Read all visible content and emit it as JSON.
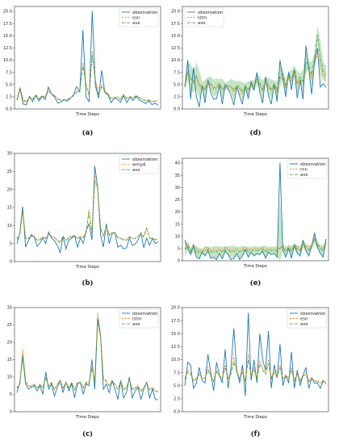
{
  "chart_data": [
    {
      "panel": "a",
      "type": "line",
      "xlabel": "Time Steps",
      "ylim": [
        0,
        21
      ],
      "yticks": [
        "0.0",
        "2.5",
        "5.0",
        "7.5",
        "10.0",
        "12.5",
        "15.0",
        "17.5",
        "20.0"
      ],
      "legend_position": "top-right",
      "band": false,
      "series": [
        {
          "name": "observation",
          "style": "solid",
          "color": "#1f77b4",
          "values": [
            1.8,
            4.2,
            1.0,
            0.9,
            2.6,
            1.5,
            2.8,
            1.6,
            2.6,
            1.9,
            4.5,
            3.1,
            2.4,
            1.2,
            1.4,
            1.9,
            1.6,
            2.2,
            2.9,
            4.6,
            3.5,
            16.2,
            2.5,
            1.5,
            20.1,
            4.8,
            2.2,
            7.9,
            3.4,
            2.9,
            1.3,
            2.2,
            2.0,
            1.4,
            2.7,
            1.3,
            2.4,
            1.7,
            2.6,
            1.8,
            1.5,
            1.1,
            1.7,
            0.9,
            1.2,
            0.8
          ]
        },
        {
          "name": "esn",
          "style": "dashed",
          "color": "#ff7f0e",
          "values": [
            2.0,
            4.5,
            1.8,
            1.6,
            2.4,
            2.1,
            2.9,
            2.2,
            2.7,
            2.6,
            3.8,
            3.2,
            2.8,
            2.2,
            1.8,
            1.9,
            2.0,
            2.3,
            2.8,
            3.6,
            3.8,
            9.5,
            5.2,
            3.0,
            11.8,
            6.0,
            3.0,
            4.9,
            3.8,
            3.1,
            2.2,
            2.3,
            2.6,
            2.1,
            3.0,
            2.2,
            2.6,
            2.3,
            2.8,
            2.4,
            2.0,
            1.8,
            1.9,
            1.5,
            1.7,
            1.6
          ]
        },
        {
          "name": "ave",
          "style": "dashdot",
          "color": "#2ca02c",
          "values": [
            1.9,
            4.3,
            1.6,
            1.5,
            2.3,
            2.0,
            2.8,
            2.0,
            2.6,
            2.4,
            3.6,
            3.1,
            2.7,
            2.0,
            1.7,
            1.8,
            1.9,
            2.2,
            2.7,
            3.4,
            3.6,
            8.8,
            4.8,
            2.8,
            10.9,
            5.6,
            2.8,
            4.6,
            3.6,
            3.0,
            2.1,
            2.2,
            2.5,
            2.0,
            2.9,
            2.1,
            2.5,
            2.2,
            2.7,
            2.3,
            1.9,
            1.7,
            1.8,
            1.4,
            1.6,
            1.5
          ]
        }
      ]
    },
    {
      "panel": "d",
      "type": "line",
      "xlabel": "Time Steps",
      "ylim": [
        0,
        21
      ],
      "yticks": [
        "0.0",
        "2.5",
        "5.0",
        "7.5",
        "10.0",
        "12.5",
        "15.0",
        "17.5",
        "20.0"
      ],
      "legend_position": "top-left",
      "band": true,
      "series": [
        {
          "name": "observation",
          "style": "solid",
          "color": "#1f77b4",
          "values": [
            4.5,
            10.0,
            2.0,
            8.5,
            2.5,
            0.4,
            4.8,
            1.2,
            6.0,
            3.3,
            2.0,
            2.1,
            4.8,
            1.0,
            5.0,
            4.1,
            2.8,
            0.8,
            4.5,
            2.6,
            1.0,
            4.8,
            2.1,
            5.6,
            3.8,
            7.5,
            3.4,
            1.2,
            6.5,
            2.8,
            1.0,
            5.2,
            1.5,
            10.0,
            6.2,
            2.5,
            7.5,
            3.9,
            8.0,
            2.2,
            6.0,
            2.0,
            13.0,
            8.0,
            3.0,
            9.5,
            12.5,
            4.5,
            5.2,
            4.4
          ]
        },
        {
          "name": "lstm",
          "style": "dashed",
          "color": "#ff7f0e",
          "values": [
            4.8,
            7.5,
            6.0,
            5.2,
            6.5,
            4.6,
            4.5,
            3.8,
            5.5,
            4.9,
            4.0,
            4.2,
            5.0,
            3.8,
            4.4,
            4.6,
            4.5,
            3.5,
            4.7,
            4.1,
            3.2,
            4.2,
            3.8,
            4.8,
            4.6,
            5.8,
            5.0,
            3.6,
            5.6,
            4.5,
            3.7,
            4.8,
            3.6,
            6.2,
            6.8,
            4.2,
            6.5,
            5.8,
            7.5,
            5.0,
            6.0,
            5.2,
            8.5,
            8.0,
            6.2,
            9.0,
            11.5,
            9.0,
            7.0,
            6.5
          ]
        },
        {
          "name": "ave",
          "style": "dashdot",
          "color": "#2ca02c",
          "values": [
            4.7,
            7.6,
            6.5,
            5.5,
            6.8,
            5.0,
            4.8,
            4.0,
            5.8,
            5.2,
            4.3,
            4.5,
            5.3,
            4.1,
            4.6,
            4.8,
            4.7,
            3.8,
            4.9,
            4.4,
            3.6,
            4.5,
            4.1,
            5.1,
            4.9,
            6.1,
            5.3,
            3.9,
            5.9,
            4.8,
            4.0,
            5.1,
            3.9,
            6.6,
            7.2,
            4.6,
            6.9,
            6.2,
            8.2,
            5.5,
            6.5,
            5.7,
            9.6,
            9.0,
            7.0,
            10.5,
            15.2,
            10.5,
            7.8,
            7.0
          ]
        }
      ]
    },
    {
      "panel": "b",
      "type": "line",
      "xlabel": "Time Steps",
      "ylim": [
        0,
        30
      ],
      "yticks": [
        "0",
        "5",
        "10",
        "15",
        "20",
        "25",
        "30"
      ],
      "legend_position": "top-right",
      "band": false,
      "series": [
        {
          "name": "observation",
          "style": "solid",
          "color": "#1f77b4",
          "values": [
            5.0,
            8.0,
            15.2,
            4.0,
            5.8,
            7.5,
            6.8,
            4.2,
            5.2,
            6.5,
            5.0,
            8.2,
            6.5,
            5.8,
            4.5,
            2.5,
            7.0,
            3.5,
            6.0,
            6.5,
            7.2,
            4.0,
            6.6,
            5.0,
            8.5,
            10.5,
            6.0,
            26.5,
            20.5,
            7.5,
            4.0,
            10.5,
            5.0,
            7.8,
            8.0,
            4.0,
            4.5,
            3.5,
            3.8,
            6.5,
            4.5,
            4.8,
            6.0,
            8.0,
            3.8,
            6.5,
            4.5,
            6.5,
            5.0,
            5.5
          ]
        },
        {
          "name": "wmp4",
          "style": "dashed",
          "color": "#ff7f0e",
          "values": [
            6.5,
            7.5,
            14.0,
            6.5,
            6.5,
            7.0,
            7.0,
            6.0,
            6.2,
            7.0,
            6.5,
            7.5,
            7.0,
            6.8,
            6.0,
            5.5,
            7.0,
            6.0,
            6.8,
            7.0,
            7.2,
            6.5,
            7.0,
            6.8,
            8.0,
            14.5,
            8.0,
            24.0,
            20.5,
            9.5,
            7.2,
            9.5,
            7.5,
            8.0,
            8.0,
            6.8,
            6.5,
            6.2,
            6.0,
            7.0,
            6.5,
            6.5,
            7.0,
            7.5,
            7.0,
            9.5,
            6.5,
            6.5,
            6.0,
            6.5
          ]
        },
        {
          "name": "ave",
          "style": "dashdot",
          "color": "#2ca02c",
          "values": [
            6.2,
            7.8,
            14.5,
            6.2,
            6.4,
            7.2,
            7.0,
            5.8,
            6.0,
            6.8,
            6.3,
            7.8,
            7.0,
            6.6,
            5.8,
            5.2,
            7.0,
            5.8,
            6.6,
            6.9,
            7.2,
            6.2,
            6.9,
            6.6,
            8.1,
            13.8,
            7.8,
            22.5,
            20.0,
            9.2,
            7.0,
            9.8,
            7.3,
            8.0,
            8.0,
            6.6,
            6.4,
            6.0,
            5.9,
            6.9,
            6.4,
            6.4,
            7.0,
            7.6,
            6.8,
            9.2,
            6.4,
            6.5,
            6.0,
            6.4
          ]
        }
      ]
    },
    {
      "panel": "e",
      "type": "line",
      "xlabel": "Time Steps",
      "ylim": [
        0,
        42
      ],
      "yticks": [
        "0",
        "5",
        "10",
        "15",
        "20",
        "25",
        "30",
        "35",
        "40"
      ],
      "legend_position": "top-right",
      "band": true,
      "series": [
        {
          "name": "observation",
          "style": "solid",
          "color": "#1f77b4",
          "values": [
            8.5,
            5.0,
            2.5,
            6.5,
            1.5,
            0.8,
            3.5,
            2.0,
            4.0,
            1.0,
            1.5,
            0.5,
            3.0,
            0.8,
            4.0,
            2.5,
            0.5,
            1.0,
            3.0,
            0.5,
            2.0,
            4.5,
            1.5,
            3.5,
            2.0,
            3.0,
            2.5,
            4.0,
            1.0,
            3.5,
            2.5,
            3.0,
            1.5,
            40.0,
            4.5,
            1.5,
            5.0,
            1.0,
            6.5,
            3.0,
            2.0,
            8.5,
            4.0,
            2.0,
            6.0,
            11.5,
            5.5,
            3.0,
            1.5,
            9.0
          ]
        },
        {
          "name": "rnn",
          "style": "dashed",
          "color": "#ff7f0e",
          "values": [
            5.0,
            7.0,
            4.5,
            6.0,
            5.0,
            4.0,
            4.5,
            5.0,
            5.5,
            4.0,
            4.5,
            4.2,
            5.0,
            4.0,
            5.5,
            5.0,
            4.2,
            4.5,
            5.0,
            4.0,
            4.8,
            5.5,
            4.5,
            5.0,
            4.8,
            5.0,
            4.8,
            5.5,
            4.5,
            5.0,
            4.8,
            5.0,
            4.5,
            5.5,
            6.0,
            4.5,
            6.0,
            4.5,
            6.5,
            5.5,
            4.8,
            7.5,
            6.0,
            5.0,
            6.5,
            9.5,
            7.0,
            5.5,
            4.8,
            8.0
          ]
        },
        {
          "name": "ave",
          "style": "dashdot",
          "color": "#2ca02c",
          "values": [
            4.5,
            6.2,
            3.8,
            5.2,
            4.0,
            3.2,
            3.8,
            4.2,
            4.6,
            3.4,
            3.8,
            3.5,
            4.3,
            3.4,
            4.7,
            4.3,
            3.5,
            3.8,
            4.2,
            3.4,
            4.1,
            4.8,
            3.8,
            4.3,
            4.1,
            4.3,
            4.1,
            4.8,
            3.8,
            4.3,
            4.1,
            4.3,
            3.8,
            5.2,
            5.5,
            3.8,
            5.4,
            3.8,
            6.0,
            4.8,
            4.1,
            7.0,
            5.4,
            4.3,
            5.8,
            9.0,
            6.4,
            4.8,
            4.1,
            7.4
          ]
        }
      ]
    },
    {
      "panel": "c",
      "type": "line",
      "xlabel": "Time Steps",
      "ylim": [
        0,
        30
      ],
      "yticks": [
        "0",
        "5",
        "10",
        "15",
        "20",
        "25",
        "30"
      ],
      "legend_position": "top-right",
      "band": false,
      "series": [
        {
          "name": "observation",
          "style": "solid",
          "color": "#1f77b4",
          "values": [
            5.5,
            8.5,
            16.0,
            8.0,
            6.5,
            7.0,
            7.5,
            6.0,
            7.5,
            5.0,
            11.5,
            6.5,
            8.0,
            4.5,
            7.0,
            9.0,
            5.5,
            8.5,
            6.0,
            8.0,
            4.0,
            8.0,
            8.5,
            5.0,
            8.0,
            7.5,
            15.0,
            6.5,
            27.0,
            22.0,
            6.5,
            8.0,
            5.5,
            9.0,
            6.5,
            3.5,
            9.0,
            4.0,
            5.5,
            10.0,
            4.0,
            6.0,
            7.0,
            3.5,
            6.5,
            8.5,
            4.0,
            6.5,
            3.5,
            3.5
          ]
        },
        {
          "name": "lstm",
          "style": "dashed",
          "color": "#ff7f0e",
          "values": [
            7.0,
            8.0,
            18.0,
            9.0,
            7.5,
            7.5,
            8.0,
            7.0,
            8.0,
            7.0,
            10.0,
            7.5,
            8.5,
            6.5,
            8.0,
            9.0,
            7.0,
            8.5,
            7.0,
            8.5,
            6.5,
            8.5,
            8.5,
            7.0,
            8.5,
            8.5,
            13.0,
            9.0,
            28.5,
            22.5,
            9.5,
            9.0,
            7.5,
            9.0,
            8.0,
            6.5,
            9.0,
            6.5,
            7.0,
            9.5,
            6.5,
            7.0,
            7.5,
            6.0,
            7.0,
            8.5,
            6.5,
            7.0,
            6.0,
            6.0
          ]
        },
        {
          "name": "ave",
          "style": "dashdot",
          "color": "#2ca02c",
          "values": [
            6.8,
            7.8,
            16.5,
            8.8,
            7.3,
            7.3,
            7.8,
            6.8,
            7.8,
            6.8,
            9.8,
            7.3,
            8.3,
            6.3,
            7.8,
            8.8,
            6.8,
            8.3,
            6.8,
            8.3,
            6.3,
            8.3,
            8.3,
            6.8,
            8.3,
            8.3,
            12.5,
            8.8,
            26.0,
            21.5,
            9.3,
            8.8,
            7.3,
            8.8,
            7.8,
            6.3,
            8.8,
            6.3,
            6.8,
            9.3,
            6.3,
            6.8,
            7.3,
            5.8,
            6.8,
            8.3,
            6.3,
            6.8,
            5.8,
            5.8
          ]
        }
      ]
    },
    {
      "panel": "f",
      "type": "line",
      "xlabel": "Time Steps",
      "ylim": [
        0,
        20
      ],
      "yticks": [
        "0.0",
        "2.5",
        "5.0",
        "7.5",
        "10.0",
        "12.5",
        "15.0",
        "17.5",
        "20.0"
      ],
      "legend_position": "top-right",
      "band": false,
      "series": [
        {
          "name": "observation",
          "style": "solid",
          "color": "#1f77b4",
          "values": [
            5.0,
            9.5,
            9.0,
            4.5,
            5.5,
            8.5,
            6.0,
            5.5,
            11.0,
            7.5,
            4.0,
            9.5,
            7.0,
            5.5,
            12.0,
            4.5,
            8.5,
            16.0,
            8.0,
            5.5,
            9.0,
            3.0,
            19.0,
            6.0,
            10.0,
            5.5,
            15.0,
            10.0,
            8.0,
            15.5,
            4.5,
            9.0,
            6.5,
            13.0,
            5.0,
            7.0,
            5.5,
            11.5,
            4.5,
            8.0,
            5.0,
            7.0,
            8.5,
            4.5,
            6.5,
            5.5,
            5.5,
            4.5,
            6.0,
            5.5
          ]
        },
        {
          "name": "esn",
          "style": "dashed",
          "color": "#ff7f0e",
          "values": [
            6.5,
            8.0,
            7.5,
            6.0,
            6.5,
            7.5,
            6.5,
            6.5,
            8.5,
            7.0,
            6.0,
            8.0,
            7.0,
            6.5,
            9.0,
            6.5,
            7.5,
            10.5,
            8.0,
            6.5,
            8.0,
            6.0,
            11.0,
            7.0,
            8.5,
            6.5,
            10.0,
            8.5,
            7.5,
            10.0,
            6.5,
            8.0,
            7.0,
            9.0,
            6.5,
            7.0,
            6.5,
            8.5,
            6.0,
            7.5,
            6.0,
            7.0,
            7.5,
            6.0,
            6.5,
            6.0,
            6.0,
            5.5,
            6.0,
            5.5
          ]
        },
        {
          "name": "ave",
          "style": "dashdot",
          "color": "#2ca02c",
          "values": [
            6.2,
            7.6,
            7.2,
            5.8,
            6.3,
            7.2,
            6.3,
            6.3,
            8.0,
            6.8,
            5.8,
            7.6,
            6.8,
            6.3,
            8.4,
            6.3,
            7.2,
            9.6,
            7.6,
            6.3,
            7.6,
            5.8,
            10.0,
            6.8,
            8.0,
            6.3,
            9.2,
            8.0,
            7.2,
            9.2,
            6.3,
            7.6,
            6.8,
            8.4,
            6.3,
            6.8,
            6.3,
            8.0,
            5.8,
            7.2,
            5.8,
            6.8,
            7.2,
            5.8,
            6.3,
            5.8,
            5.8,
            5.5,
            5.8,
            5.3
          ]
        }
      ]
    }
  ],
  "captions": [
    "a",
    "d",
    "b",
    "e",
    "c",
    "f"
  ]
}
